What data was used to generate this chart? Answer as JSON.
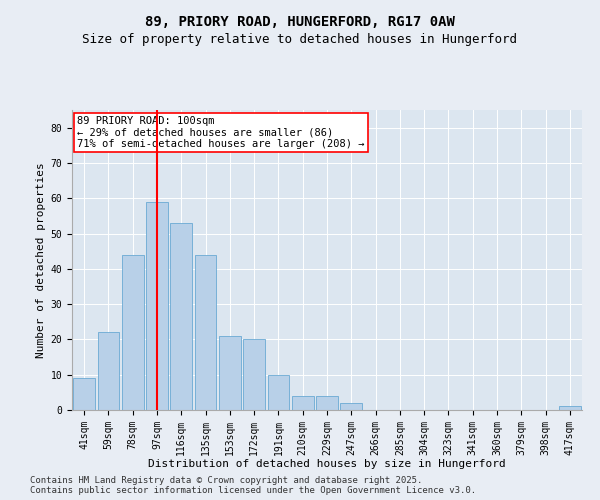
{
  "title1": "89, PRIORY ROAD, HUNGERFORD, RG17 0AW",
  "title2": "Size of property relative to detached houses in Hungerford",
  "xlabel": "Distribution of detached houses by size in Hungerford",
  "ylabel": "Number of detached properties",
  "bins": [
    "41sqm",
    "59sqm",
    "78sqm",
    "97sqm",
    "116sqm",
    "135sqm",
    "153sqm",
    "172sqm",
    "191sqm",
    "210sqm",
    "229sqm",
    "247sqm",
    "266sqm",
    "285sqm",
    "304sqm",
    "323sqm",
    "341sqm",
    "360sqm",
    "379sqm",
    "398sqm",
    "417sqm"
  ],
  "values": [
    9,
    22,
    44,
    59,
    53,
    44,
    21,
    20,
    10,
    4,
    4,
    2,
    0,
    0,
    0,
    0,
    0,
    0,
    0,
    0,
    1
  ],
  "bar_color": "#b8d0e8",
  "bar_edge_color": "#6aaad4",
  "vline_x_index": 3,
  "vline_color": "red",
  "annotation_text": "89 PRIORY ROAD: 100sqm\n← 29% of detached houses are smaller (86)\n71% of semi-detached houses are larger (208) →",
  "annotation_box_color": "white",
  "annotation_box_edge_color": "red",
  "ylim": [
    0,
    85
  ],
  "yticks": [
    0,
    10,
    20,
    30,
    40,
    50,
    60,
    70,
    80
  ],
  "background_color": "#e8edf4",
  "plot_bg_color": "#dce6f0",
  "footnote": "Contains HM Land Registry data © Crown copyright and database right 2025.\nContains public sector information licensed under the Open Government Licence v3.0.",
  "title1_fontsize": 10,
  "title2_fontsize": 9,
  "xlabel_fontsize": 8,
  "ylabel_fontsize": 8,
  "tick_fontsize": 7,
  "annotation_fontsize": 7.5,
  "footnote_fontsize": 6.5
}
